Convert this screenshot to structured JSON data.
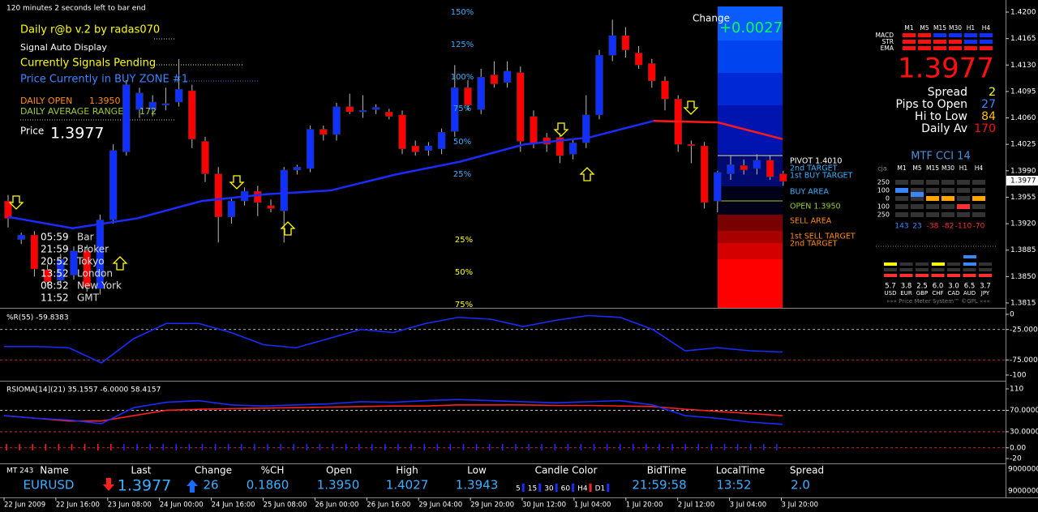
{
  "status": {
    "countdown": "120 minutes 2 seconds left to bar end"
  },
  "info": {
    "title": "Daily r@b v.2 by radas070",
    "signal_display": "Signal Auto Display",
    "signals": "Currently Signals Pending",
    "zone": "Price Currently in BUY ZONE #1",
    "daily_open_label": "DAILY OPEN",
    "daily_open": "1.3950",
    "dar_label": "DAILY AVERAGE RANGE",
    "dar": "172",
    "price_label": "Price",
    "price": "1.3977"
  },
  "sessions": [
    {
      "time": "05:59",
      "name": "Bar"
    },
    {
      "time": "21:59",
      "name": "Broker"
    },
    {
      "time": "20:52",
      "name": "Tokyo"
    },
    {
      "time": "13:52",
      "name": "London"
    },
    {
      "time": "08:52",
      "name": "New York"
    },
    {
      "time": "11:52",
      "name": "GMT"
    }
  ],
  "fib_upper": [
    "150%",
    "125%",
    "100%",
    "75%",
    "50%",
    "25%"
  ],
  "fib_lower": [
    "25%",
    "50%",
    "75%"
  ],
  "zones": {
    "change_label": "Change",
    "change": "+0.0027",
    "pivot": "PIVOT 1.4010",
    "t2_buy": "2nd TARGET",
    "t1_buy": "1st BUY TARGET",
    "buy_area": "BUY AREA",
    "open": "OPEN 1.3950",
    "sell_area": "SELL AREA",
    "t1_sell": "1st SELL TARGET",
    "t2_sell": "2nd TARGET"
  },
  "price_axis": [
    {
      "value": 1.42,
      "label": "1.4200"
    },
    {
      "value": 1.4165,
      "label": "1.4165"
    },
    {
      "value": 1.413,
      "label": "1.4130"
    },
    {
      "value": 1.4095,
      "label": "1.4095"
    },
    {
      "value": 1.406,
      "label": "1.4060"
    },
    {
      "value": 1.4025,
      "label": "1.4025"
    },
    {
      "value": 1.399,
      "label": "1.3990"
    },
    {
      "value": 1.3955,
      "label": "1.3955"
    },
    {
      "value": 1.392,
      "label": "1.3920"
    },
    {
      "value": 1.3885,
      "label": "1.3885"
    },
    {
      "value": 1.385,
      "label": "1.3850"
    },
    {
      "value": 1.3815,
      "label": "1.3815"
    }
  ],
  "price_tag": {
    "value": 1.3977,
    "label": "1.3977"
  },
  "candles": [
    [
      1.395,
      1.3958,
      1.3915,
      1.3927
    ],
    [
      1.3899,
      1.3908,
      1.3893,
      1.3905
    ],
    [
      1.3905,
      1.391,
      1.385,
      1.386
    ],
    [
      1.3859,
      1.3866,
      1.3838,
      1.3843
    ],
    [
      1.3845,
      1.388,
      1.384,
      1.3873
    ],
    [
      1.3852,
      1.389,
      1.3846,
      1.3884
    ],
    [
      1.3884,
      1.3892,
      1.383,
      1.3836
    ],
    [
      1.3834,
      1.3932,
      1.3826,
      1.3925
    ],
    [
      1.3925,
      1.4025,
      1.392,
      1.4017
    ],
    [
      1.4015,
      1.411,
      1.401,
      1.4104
    ],
    [
      1.4071,
      1.41,
      1.406,
      1.4093
    ],
    [
      1.4071,
      1.409,
      1.4062,
      1.4081
    ],
    [
      1.4077,
      1.41,
      1.407,
      1.4079
    ],
    [
      1.4081,
      1.4138,
      1.4075,
      1.4098
    ],
    [
      1.4096,
      1.4104,
      1.402,
      1.4032
    ],
    [
      1.4029,
      1.4035,
      1.3975,
      1.3986
    ],
    [
      1.3986,
      1.3995,
      1.3895,
      1.3929
    ],
    [
      1.3929,
      1.3955,
      1.392,
      1.395
    ],
    [
      1.395,
      1.3968,
      1.3944,
      1.3963
    ],
    [
      1.3963,
      1.397,
      1.393,
      1.3948
    ],
    [
      1.3944,
      1.3952,
      1.3935,
      1.394
    ],
    [
      1.3937,
      1.3995,
      1.3895,
      1.3991
    ],
    [
      1.3991,
      1.3998,
      1.3985,
      1.3995
    ],
    [
      1.3993,
      1.405,
      1.3988,
      1.4045
    ],
    [
      1.4045,
      1.405,
      1.403,
      1.4038
    ],
    [
      1.4038,
      1.408,
      1.403,
      1.4075
    ],
    [
      1.4075,
      1.4092,
      1.4065,
      1.4068
    ],
    [
      1.4068,
      1.409,
      1.406,
      1.407
    ],
    [
      1.4071,
      1.4078,
      1.4065,
      1.4074
    ],
    [
      1.4068,
      1.4072,
      1.4058,
      1.4062
    ],
    [
      1.4064,
      1.407,
      1.4012,
      1.4019
    ],
    [
      1.4023,
      1.403,
      1.401,
      1.4015
    ],
    [
      1.4017,
      1.4028,
      1.401,
      1.4023
    ],
    [
      1.4019,
      1.4046,
      1.4012,
      1.4041
    ],
    [
      1.4042,
      1.413,
      1.4035,
      1.41
    ],
    [
      1.41,
      1.411,
      1.407,
      1.4077
    ],
    [
      1.4071,
      1.4125,
      1.4065,
      1.4114
    ],
    [
      1.4117,
      1.4135,
      1.41,
      1.4105
    ],
    [
      1.4107,
      1.4135,
      1.41,
      1.4122
    ],
    [
      1.412,
      1.4128,
      1.4015,
      1.4029
    ],
    [
      1.4062,
      1.407,
      1.402,
      1.4027
    ],
    [
      1.4034,
      1.404,
      1.4015,
      1.4025
    ],
    [
      1.4034,
      1.404,
      1.4,
      1.401
    ],
    [
      1.4012,
      1.4032,
      1.4005,
      1.4027
    ],
    [
      1.4027,
      1.409,
      1.402,
      1.4064
    ],
    [
      1.4064,
      1.415,
      1.4058,
      1.4143
    ],
    [
      1.4143,
      1.419,
      1.4135,
      1.4169
    ],
    [
      1.4169,
      1.418,
      1.414,
      1.415
    ],
    [
      1.4146,
      1.4155,
      1.4125,
      1.413
    ],
    [
      1.4132,
      1.4138,
      1.41,
      1.4109
    ],
    [
      1.4109,
      1.4115,
      1.407,
      1.4085
    ],
    [
      1.4085,
      1.409,
      1.4015,
      1.4025
    ],
    [
      1.4025,
      1.403,
      1.4,
      1.4023
    ],
    [
      1.4023,
      1.4028,
      1.394,
      1.3948
    ],
    [
      1.395,
      1.399,
      1.3935,
      1.3988
    ],
    [
      1.3986,
      1.401,
      1.3978,
      1.3998
    ],
    [
      1.3997,
      1.4005,
      1.3985,
      1.3991
    ],
    [
      1.3993,
      1.4012,
      1.3985,
      1.4004
    ],
    [
      1.4004,
      1.401,
      1.3978,
      1.3982
    ],
    [
      1.3986,
      1.399,
      1.397,
      1.3976
    ]
  ],
  "ma": [
    1.3929,
    1.3914,
    1.3927,
    1.395,
    1.3959,
    1.3964,
    1.3985,
    1.4002,
    1.4025,
    1.4034,
    1.4056,
    1.4054,
    1.4032
  ],
  "signal_panel": {
    "timeframes": [
      "M1",
      "M5",
      "M15",
      "M30",
      "H1",
      "H4"
    ],
    "rows": [
      "MACD",
      "STR",
      "EMA"
    ],
    "price": "1.3977",
    "stats": [
      {
        "label": "Spread",
        "value": "2"
      },
      {
        "label": "Pips to Open",
        "value": "27"
      },
      {
        "label": "Hi to Low",
        "value": "84"
      },
      {
        "label": "Daily Av",
        "value": "170"
      }
    ]
  },
  "cci": {
    "title": "MTF CCI 14",
    "author": "cja",
    "timeframes": [
      "M1",
      "M5",
      "M15",
      "M30",
      "H1",
      "H4"
    ],
    "levels": [
      "250",
      "100",
      "0",
      "100",
      "250"
    ],
    "values": [
      143,
      23,
      -38,
      -82,
      -110,
      -70
    ]
  },
  "meter": {
    "values": [
      "5.7",
      "3.8",
      "2.5",
      "6.0",
      "3.0",
      "6.5",
      "3.7"
    ],
    "currencies": [
      "USD",
      "EUR",
      "GBP",
      "CHF",
      "CAD",
      "AUD",
      "JPY"
    ],
    "footer": "»»» Price Meter System™ ©GPL «««"
  },
  "wpr": {
    "title": "%R(55) -59.8383",
    "axis": [
      0,
      {
        "value": -25,
        "label": "-25.0000"
      },
      {
        "value": -75,
        "label": "-75.0000"
      },
      -100
    ],
    "values": [
      -53,
      -53,
      -55,
      -80,
      -40,
      -15,
      -15,
      -30,
      -50,
      -55,
      -40,
      -25,
      -30,
      -15,
      -5,
      -8,
      -20,
      -10,
      -2,
      -5,
      -25,
      -60,
      -55,
      -60,
      -62
    ]
  },
  "rsioma": {
    "title": "RSIOMA[14](21) 35.1557 -6.0000 58.4157",
    "axis": [
      110,
      {
        "value": 70,
        "label": "70.0000"
      },
      {
        "value": 30,
        "label": "30.0000"
      },
      {
        "value": 0,
        "label": "0.00"
      },
      -20
    ],
    "blue": [
      60,
      55,
      52,
      45,
      75,
      85,
      88,
      80,
      78,
      80,
      82,
      86,
      85,
      88,
      90,
      88,
      86,
      84,
      86,
      88,
      80,
      60,
      55,
      48,
      44
    ],
    "red": [
      60,
      55,
      50,
      50,
      60,
      70,
      72,
      73,
      74,
      75,
      76,
      77,
      78,
      78,
      80,
      80,
      80,
      79,
      79,
      78,
      77,
      72,
      68,
      64,
      60
    ]
  },
  "time_axis": [
    "22 Jun 2009",
    "22 Jun 16:00",
    "23 Jun 08:00",
    "24 Jun 00:00",
    "24 Jun 16:00",
    "25 Jun 08:00",
    "26 Jun 00:00",
    "26 Jun 16:00",
    "29 Jun 04:00",
    "29 Jun 20:00",
    "30 Jun 12:00",
    "1 Jul 04:00",
    "1 Jul 20:00",
    "2 Jul 12:00",
    "3 Jul 04:00",
    "3 Jul 20:00"
  ],
  "ticker": {
    "headers": [
      "MT 243",
      "Name",
      "Last",
      "Change",
      "%CH",
      "Open",
      "High",
      "Low",
      "Candle Color",
      "BidTime",
      "LocalTime",
      "Spread"
    ],
    "name": "EURUSD",
    "last": "1.3977",
    "change": "26",
    "pct": "0.1860",
    "open": "1.3950",
    "high": "1.4027",
    "low": "1.3943",
    "candle_colors": [
      "5",
      "15",
      "30",
      "60",
      "H4",
      "D1"
    ],
    "bid_time": "21:59:58",
    "local_time": "13:52",
    "spread": "2.0",
    "volume_axis": [
      "9000000",
      "9000000"
    ]
  }
}
